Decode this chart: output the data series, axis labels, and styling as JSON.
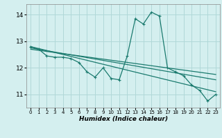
{
  "xlabel": "Humidex (Indice chaleur)",
  "ylabel": "",
  "background_color": "#d4efef",
  "grid_color": "#b0d8d8",
  "line_color": "#1a7a6e",
  "xlim": [
    -0.5,
    23.5
  ],
  "ylim": [
    10.5,
    14.4
  ],
  "yticks": [
    11,
    12,
    13,
    14
  ],
  "xticks": [
    0,
    1,
    2,
    3,
    4,
    5,
    6,
    7,
    8,
    9,
    10,
    11,
    12,
    13,
    14,
    15,
    16,
    17,
    18,
    19,
    20,
    21,
    22,
    23
  ],
  "main_series_x": [
    0,
    1,
    2,
    3,
    4,
    5,
    6,
    7,
    8,
    9,
    10,
    11,
    12,
    13,
    14,
    15,
    16,
    17,
    18,
    19,
    20,
    21,
    22,
    23
  ],
  "main_series_y": [
    12.8,
    12.7,
    12.45,
    12.4,
    12.4,
    12.35,
    12.2,
    11.85,
    11.65,
    12.0,
    11.6,
    11.55,
    12.45,
    13.85,
    13.65,
    14.1,
    13.95,
    12.0,
    11.85,
    11.7,
    11.35,
    11.15,
    10.75,
    11.0
  ],
  "trend1_x": [
    0,
    23
  ],
  "trend1_y": [
    12.8,
    11.1
  ],
  "trend2_x": [
    0,
    23
  ],
  "trend2_y": [
    12.75,
    11.55
  ],
  "trend3_x": [
    0,
    23
  ],
  "trend3_y": [
    12.7,
    11.75
  ]
}
